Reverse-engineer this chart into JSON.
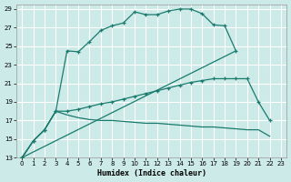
{
  "title": "",
  "xlabel": "Humidex (Indice chaleur)",
  "ylabel": "",
  "background_color": "#cceae7",
  "grid_color": "#ffffff",
  "line_color": "#1a7a6e",
  "xlim": [
    -0.5,
    23.5
  ],
  "ylim": [
    13,
    29.5
  ],
  "xticks": [
    0,
    1,
    2,
    3,
    4,
    5,
    6,
    7,
    8,
    9,
    10,
    11,
    12,
    13,
    14,
    15,
    16,
    17,
    18,
    19,
    20,
    21,
    22,
    23
  ],
  "yticks": [
    13,
    15,
    17,
    19,
    21,
    23,
    25,
    27,
    29
  ],
  "curve1_x": [
    0,
    1,
    2,
    3,
    4,
    5,
    6,
    7,
    8,
    9,
    10,
    11,
    12,
    13,
    14,
    15,
    16,
    17,
    18,
    19
  ],
  "curve1_y": [
    13,
    14.8,
    16,
    18,
    24.5,
    24.4,
    25.5,
    26.7,
    27.2,
    27.5,
    28.7,
    28.4,
    28.4,
    28.8,
    29.0,
    29.0,
    28.5,
    27.3,
    27.2,
    24.5
  ],
  "curve2_x": [
    0,
    19
  ],
  "curve2_y": [
    13,
    24.5
  ],
  "curve3_x": [
    0,
    1,
    2,
    3,
    4,
    5,
    6,
    7,
    8,
    9,
    10,
    11,
    12,
    13,
    14,
    15,
    16,
    17,
    18,
    19,
    20,
    21,
    22
  ],
  "curve3_y": [
    13,
    14.8,
    16,
    18,
    18.0,
    18.2,
    18.5,
    18.8,
    19.0,
    19.3,
    19.6,
    19.9,
    20.2,
    20.5,
    20.8,
    21.1,
    21.3,
    21.5,
    21.5,
    21.5,
    21.5,
    19.0,
    17.0
  ],
  "curve4_x": [
    0,
    1,
    2,
    3,
    4,
    5,
    6,
    7,
    8,
    9,
    10,
    11,
    12,
    13,
    14,
    15,
    16,
    17,
    18,
    19,
    20,
    21,
    22
  ],
  "curve4_y": [
    13,
    14.8,
    16,
    18,
    17.6,
    17.3,
    17.1,
    17.0,
    17.0,
    16.9,
    16.8,
    16.7,
    16.7,
    16.6,
    16.5,
    16.4,
    16.3,
    16.3,
    16.2,
    16.1,
    16.0,
    16.0,
    15.3
  ]
}
